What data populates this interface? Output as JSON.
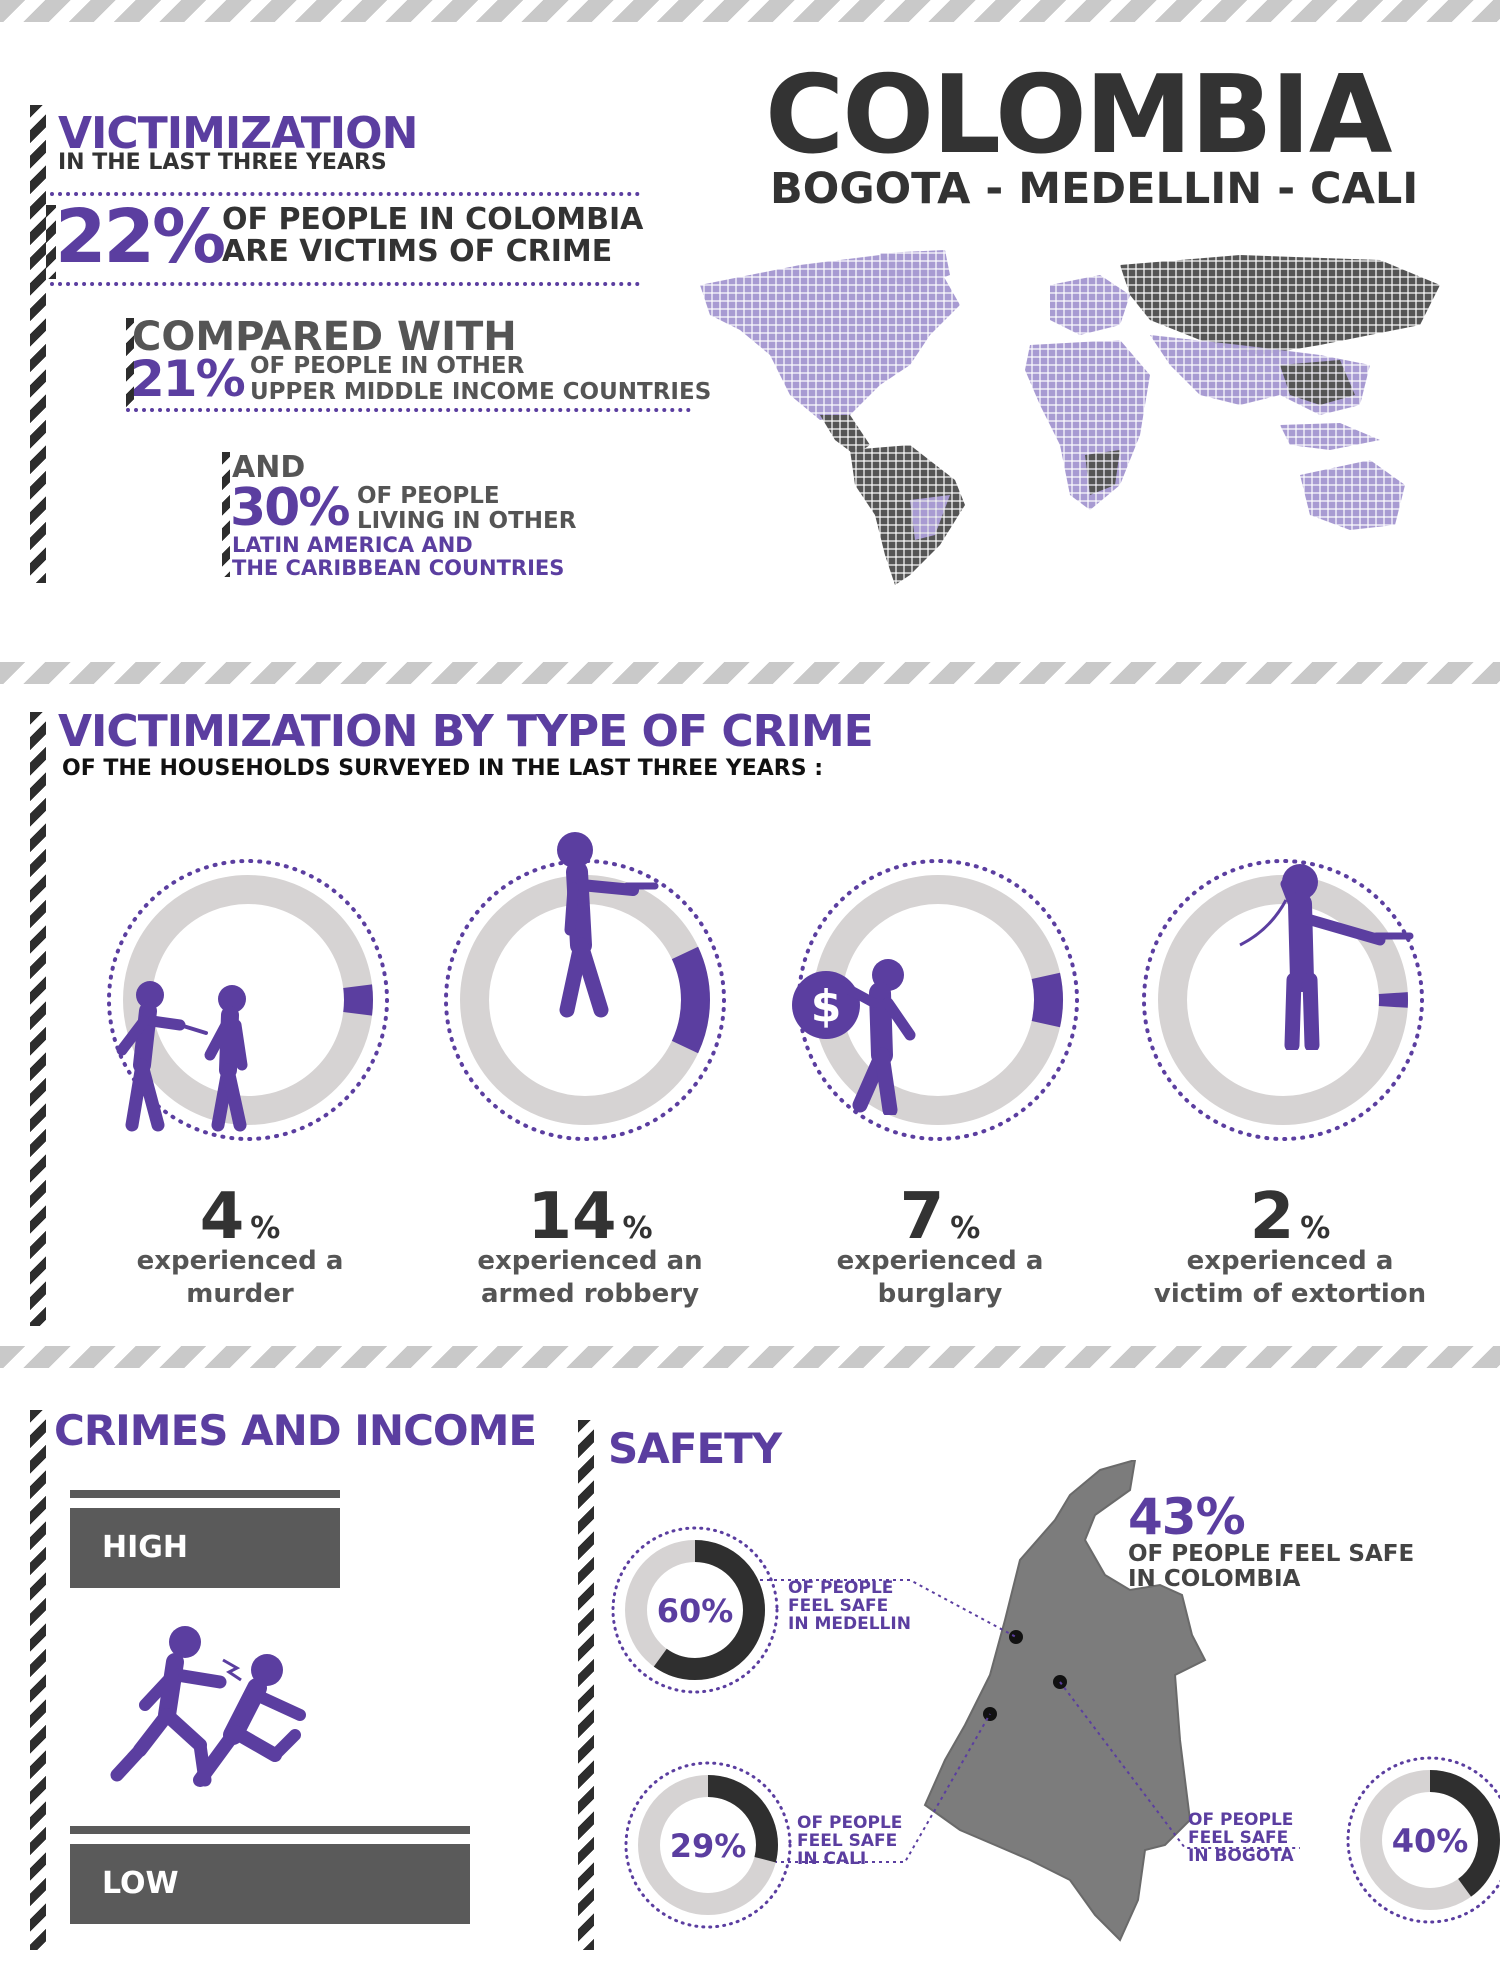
{
  "header": {
    "title": "COLOMBIA",
    "subtitle": "BOGOTA - MEDELLIN - CALI"
  },
  "victimization": {
    "title": "VICTIMIZATION",
    "subtitle": "IN THE LAST THREE YEARS",
    "main_pct": "22%",
    "main_line1": "OF PEOPLE IN COLOMBIA",
    "main_line2": "ARE VICTIMS OF CRIME",
    "compared_label": "COMPARED WITH",
    "compared_pct": "21%",
    "compared_line1": "OF PEOPLE IN OTHER",
    "compared_line2": "UPPER MIDDLE INCOME COUNTRIES",
    "and_label": "AND",
    "and_pct": "30%",
    "and_line1": "OF PEOPLE",
    "and_line2": "LIVING IN OTHER",
    "and_line3": "LATIN AMERICA AND",
    "and_line4": "THE CARIBBEAN COUNTRIES"
  },
  "crime_types": {
    "title": "VICTIMIZATION BY TYPE OF CRIME",
    "subtitle": "OF THE HOUSEHOLDS SURVEYED IN THE LAST THREE YEARS :",
    "items": [
      {
        "value": "4",
        "unit": "%",
        "line1": "experienced a",
        "line2": "murder",
        "fraction": 0.04,
        "icon": "stabbing-figures-icon"
      },
      {
        "value": "14",
        "unit": "%",
        "line1": "experienced an",
        "line2": "armed robbery",
        "fraction": 0.14,
        "icon": "gunman-icon"
      },
      {
        "value": "7",
        "unit": "%",
        "line1": "experienced a",
        "line2": "burglary",
        "fraction": 0.07,
        "icon": "burglar-money-bag-icon"
      },
      {
        "value": "2",
        "unit": "%",
        "line1": "experienced a",
        "line2": "victim of extortion",
        "fraction": 0.02,
        "icon": "phone-extortion-icon"
      }
    ]
  },
  "income": {
    "title": "CRIMES AND INCOME",
    "high_label": "HIGH",
    "low_label": "LOW"
  },
  "safety": {
    "title": "SAFETY",
    "national_pct": "43%",
    "national_line1": "OF PEOPLE FEEL SAFE",
    "national_line2": "IN COLOMBIA",
    "cities": [
      {
        "pct": "60%",
        "fraction": 0.6,
        "line1": "OF PEOPLE",
        "line2": "FEEL SAFE",
        "line3": "IN MEDELLIN"
      },
      {
        "pct": "29%",
        "fraction": 0.29,
        "line1": "OF PEOPLE",
        "line2": "FEEL SAFE",
        "line3": "IN CALI"
      },
      {
        "pct": "40%",
        "fraction": 0.4,
        "line1": "OF PEOPLE",
        "line2": "FEEL SAFE",
        "line3": "IN BOGOTA"
      }
    ]
  },
  "colors": {
    "purple": "#5b3ea0",
    "light_purple": "#a89bd2",
    "dark": "#333333",
    "ring_gray": "#d6d3d3"
  }
}
